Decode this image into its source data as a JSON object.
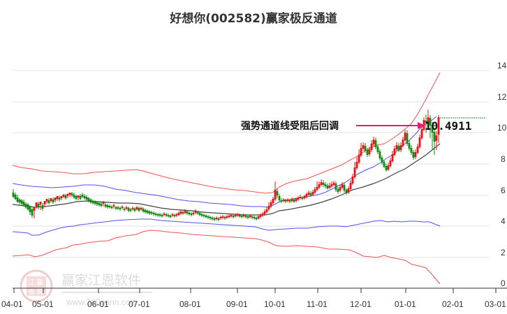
{
  "title": "好想你(002582)赢家极反通道",
  "annotation": {
    "text": "强势通道线受阻后回调",
    "price_label": "10.4911",
    "arrow_color": "#e0206e"
  },
  "watermark": {
    "text": "赢家江恩软件",
    "url": "www.360gann.com",
    "seal": [
      "江",
      "赢",
      "恩",
      "家"
    ]
  },
  "colors": {
    "up": "#ee1111",
    "down": "#118811",
    "outer_band": "#ee3333",
    "inner_band": "#3333ee",
    "mid_line": "#222222",
    "grid": "#e2e2e2",
    "price_line": "#228822"
  },
  "chart_data": {
    "type": "candlestick",
    "title": "好想你(002582)赢家极反通道",
    "xlabel": "",
    "ylabel": "",
    "ylim": [
      0,
      14
    ],
    "yticks": [
      0,
      2,
      4,
      6,
      8,
      10,
      12,
      14
    ],
    "xticks": [
      "04-01",
      "05-01",
      "06-01",
      "07-01",
      "08-01",
      "09-01",
      "10-01",
      "11-01",
      "12-01",
      "01-01",
      "02-01",
      "03-01"
    ],
    "grid": true,
    "legend": "none",
    "last_price": 10.4911,
    "annotations": [
      {
        "text": "强势通道线受阻后回调",
        "target_value": 10.4911
      }
    ],
    "series": [
      {
        "name": "outer_upper_band",
        "color": "red",
        "points": [
          [
            "04-01",
            9.0
          ],
          [
            "05-01",
            8.6
          ],
          [
            "06-01",
            8.4
          ],
          [
            "07-01",
            8.6
          ],
          [
            "08-01",
            7.8
          ],
          [
            "09-01",
            7.2
          ],
          [
            "10-01",
            6.9
          ],
          [
            "11-01",
            7.4
          ],
          [
            "12-01",
            8.5
          ],
          [
            "01-01",
            10.0
          ],
          [
            "01-20",
            13.8
          ]
        ]
      },
      {
        "name": "inner_upper_band",
        "color": "blue",
        "points": [
          [
            "04-01",
            6.5
          ],
          [
            "05-01",
            6.1
          ],
          [
            "06-01",
            6.2
          ],
          [
            "07-01",
            6.3
          ],
          [
            "08-01",
            5.7
          ],
          [
            "09-01",
            5.3
          ],
          [
            "10-01",
            5.1
          ],
          [
            "11-01",
            5.8
          ],
          [
            "12-01",
            7.0
          ],
          [
            "01-01",
            9.0
          ],
          [
            "01-20",
            10.6
          ]
        ]
      },
      {
        "name": "middle_line",
        "color": "black",
        "points": [
          [
            "04-01",
            6.0
          ],
          [
            "05-01",
            5.6
          ],
          [
            "06-01",
            5.7
          ],
          [
            "07-01",
            5.4
          ],
          [
            "08-01",
            4.9
          ],
          [
            "09-01",
            4.7
          ],
          [
            "10-01",
            4.8
          ],
          [
            "11-01",
            5.5
          ],
          [
            "12-01",
            6.3
          ],
          [
            "01-01",
            7.3
          ],
          [
            "01-20",
            8.0
          ]
        ]
      },
      {
        "name": "inner_lower_band",
        "color": "blue",
        "points": [
          [
            "04-01",
            3.4
          ],
          [
            "05-01",
            3.1
          ],
          [
            "06-01",
            3.6
          ],
          [
            "07-01",
            4.4
          ],
          [
            "08-01",
            4.0
          ],
          [
            "09-01",
            3.9
          ],
          [
            "10-01",
            3.4
          ],
          [
            "11-01",
            3.6
          ],
          [
            "12-01",
            3.9
          ],
          [
            "01-01",
            4.6
          ],
          [
            "01-20",
            4.0
          ]
        ]
      },
      {
        "name": "outer_lower_band",
        "color": "red",
        "points": [
          [
            "04-01",
            1.5
          ],
          [
            "05-01",
            1.3
          ],
          [
            "06-01",
            2.4
          ],
          [
            "07-01",
            3.5
          ],
          [
            "08-01",
            3.3
          ],
          [
            "09-01",
            3.2
          ],
          [
            "10-01",
            2.5
          ],
          [
            "11-01",
            2.3
          ],
          [
            "12-01",
            1.9
          ],
          [
            "01-01",
            1.5
          ],
          [
            "01-20",
            0.2
          ]
        ]
      },
      {
        "name": "close_price",
        "color": "candles",
        "points": [
          [
            "04-01",
            6.2
          ],
          [
            "04-15",
            5.3
          ],
          [
            "05-01",
            5.7
          ],
          [
            "06-01",
            5.7
          ],
          [
            "07-01",
            5.4
          ],
          [
            "08-01",
            4.9
          ],
          [
            "09-01",
            4.7
          ],
          [
            "10-01",
            6.2
          ],
          [
            "11-01",
            6.3
          ],
          [
            "12-01",
            8.5
          ],
          [
            "12-20",
            8.3
          ],
          [
            "01-01",
            7.6
          ],
          [
            "01-15",
            10.1
          ],
          [
            "01-20",
            10.49
          ]
        ]
      }
    ]
  }
}
